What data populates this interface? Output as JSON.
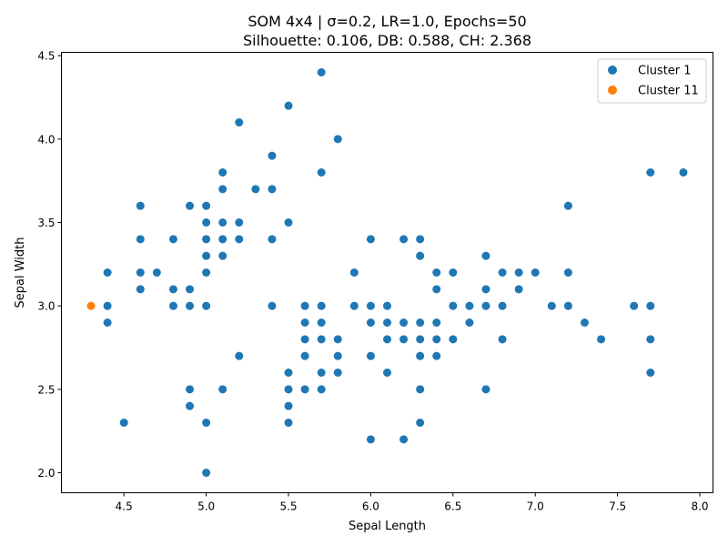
{
  "chart_data": {
    "type": "scatter",
    "title_line1": "SOM 4x4 | σ=0.2, LR=1.0, Epochs=50",
    "title_line2": "Silhouette: 0.106, DB: 0.588, CH: 2.368",
    "xlabel": "Sepal Length",
    "ylabel": "Sepal Width",
    "xlim": [
      4.12,
      8.08
    ],
    "ylim": [
      1.88,
      4.52
    ],
    "xticks": [
      4.5,
      5.0,
      5.5,
      6.0,
      6.5,
      7.0,
      7.5,
      8.0
    ],
    "xtick_labels": [
      "4.5",
      "5.0",
      "5.5",
      "6.0",
      "6.5",
      "7.0",
      "7.5",
      "8.0"
    ],
    "yticks": [
      2.0,
      2.5,
      3.0,
      3.5,
      4.0,
      4.5
    ],
    "ytick_labels": [
      "2.0",
      "2.5",
      "3.0",
      "3.5",
      "4.0",
      "4.5"
    ],
    "grid": false,
    "legend_position": "upper right",
    "series": [
      {
        "name": "Cluster 1",
        "color": "#1f77b4",
        "points": [
          [
            4.4,
            3.2
          ],
          [
            4.4,
            3.0
          ],
          [
            4.4,
            2.9
          ],
          [
            4.5,
            2.3
          ],
          [
            4.6,
            3.6
          ],
          [
            4.6,
            3.4
          ],
          [
            4.6,
            3.2
          ],
          [
            4.6,
            3.1
          ],
          [
            4.7,
            3.2
          ],
          [
            4.8,
            3.4
          ],
          [
            4.8,
            3.1
          ],
          [
            4.8,
            3.0
          ],
          [
            4.9,
            3.6
          ],
          [
            4.9,
            3.1
          ],
          [
            4.9,
            3.0
          ],
          [
            4.9,
            2.5
          ],
          [
            4.9,
            2.4
          ],
          [
            5.0,
            3.6
          ],
          [
            5.0,
            3.5
          ],
          [
            5.0,
            3.4
          ],
          [
            5.0,
            3.3
          ],
          [
            5.0,
            3.2
          ],
          [
            5.0,
            3.0
          ],
          [
            5.0,
            2.3
          ],
          [
            5.0,
            2.0
          ],
          [
            5.1,
            3.8
          ],
          [
            5.1,
            3.7
          ],
          [
            5.1,
            3.5
          ],
          [
            5.1,
            3.4
          ],
          [
            5.1,
            3.3
          ],
          [
            5.1,
            2.5
          ],
          [
            5.2,
            4.1
          ],
          [
            5.2,
            3.5
          ],
          [
            5.2,
            3.4
          ],
          [
            5.2,
            2.7
          ],
          [
            5.3,
            3.7
          ],
          [
            5.4,
            3.9
          ],
          [
            5.4,
            3.7
          ],
          [
            5.4,
            3.4
          ],
          [
            5.4,
            3.0
          ],
          [
            5.5,
            4.2
          ],
          [
            5.5,
            3.5
          ],
          [
            5.5,
            2.6
          ],
          [
            5.5,
            2.5
          ],
          [
            5.5,
            2.4
          ],
          [
            5.5,
            2.3
          ],
          [
            5.6,
            3.0
          ],
          [
            5.6,
            2.9
          ],
          [
            5.6,
            2.8
          ],
          [
            5.6,
            2.7
          ],
          [
            5.6,
            2.5
          ],
          [
            5.7,
            4.4
          ],
          [
            5.7,
            3.8
          ],
          [
            5.7,
            3.0
          ],
          [
            5.7,
            2.9
          ],
          [
            5.7,
            2.8
          ],
          [
            5.7,
            2.6
          ],
          [
            5.7,
            2.5
          ],
          [
            5.8,
            4.0
          ],
          [
            5.8,
            2.8
          ],
          [
            5.8,
            2.7
          ],
          [
            5.8,
            2.6
          ],
          [
            5.9,
            3.2
          ],
          [
            5.9,
            3.0
          ],
          [
            6.0,
            3.4
          ],
          [
            6.0,
            3.0
          ],
          [
            6.0,
            2.9
          ],
          [
            6.0,
            2.7
          ],
          [
            6.0,
            2.2
          ],
          [
            6.1,
            3.0
          ],
          [
            6.1,
            2.9
          ],
          [
            6.1,
            2.8
          ],
          [
            6.1,
            2.6
          ],
          [
            6.2,
            3.4
          ],
          [
            6.2,
            2.9
          ],
          [
            6.2,
            2.8
          ],
          [
            6.2,
            2.2
          ],
          [
            6.3,
            3.4
          ],
          [
            6.3,
            3.3
          ],
          [
            6.3,
            2.9
          ],
          [
            6.3,
            2.8
          ],
          [
            6.3,
            2.7
          ],
          [
            6.3,
            2.5
          ],
          [
            6.3,
            2.3
          ],
          [
            6.4,
            3.2
          ],
          [
            6.4,
            3.1
          ],
          [
            6.4,
            2.9
          ],
          [
            6.4,
            2.8
          ],
          [
            6.4,
            2.7
          ],
          [
            6.5,
            3.2
          ],
          [
            6.5,
            3.0
          ],
          [
            6.5,
            2.8
          ],
          [
            6.6,
            3.0
          ],
          [
            6.6,
            2.9
          ],
          [
            6.7,
            3.3
          ],
          [
            6.7,
            3.1
          ],
          [
            6.7,
            3.0
          ],
          [
            6.7,
            2.5
          ],
          [
            6.8,
            3.2
          ],
          [
            6.8,
            3.0
          ],
          [
            6.8,
            2.8
          ],
          [
            6.9,
            3.2
          ],
          [
            6.9,
            3.1
          ],
          [
            7.0,
            3.2
          ],
          [
            7.1,
            3.0
          ],
          [
            7.2,
            3.6
          ],
          [
            7.2,
            3.2
          ],
          [
            7.2,
            3.0
          ],
          [
            7.3,
            2.9
          ],
          [
            7.4,
            2.8
          ],
          [
            7.6,
            3.0
          ],
          [
            7.7,
            3.8
          ],
          [
            7.7,
            3.0
          ],
          [
            7.7,
            2.8
          ],
          [
            7.7,
            2.6
          ],
          [
            7.9,
            3.8
          ]
        ]
      },
      {
        "name": "Cluster 11",
        "color": "#ff7f0e",
        "points": [
          [
            4.3,
            3.0
          ]
        ]
      }
    ]
  }
}
